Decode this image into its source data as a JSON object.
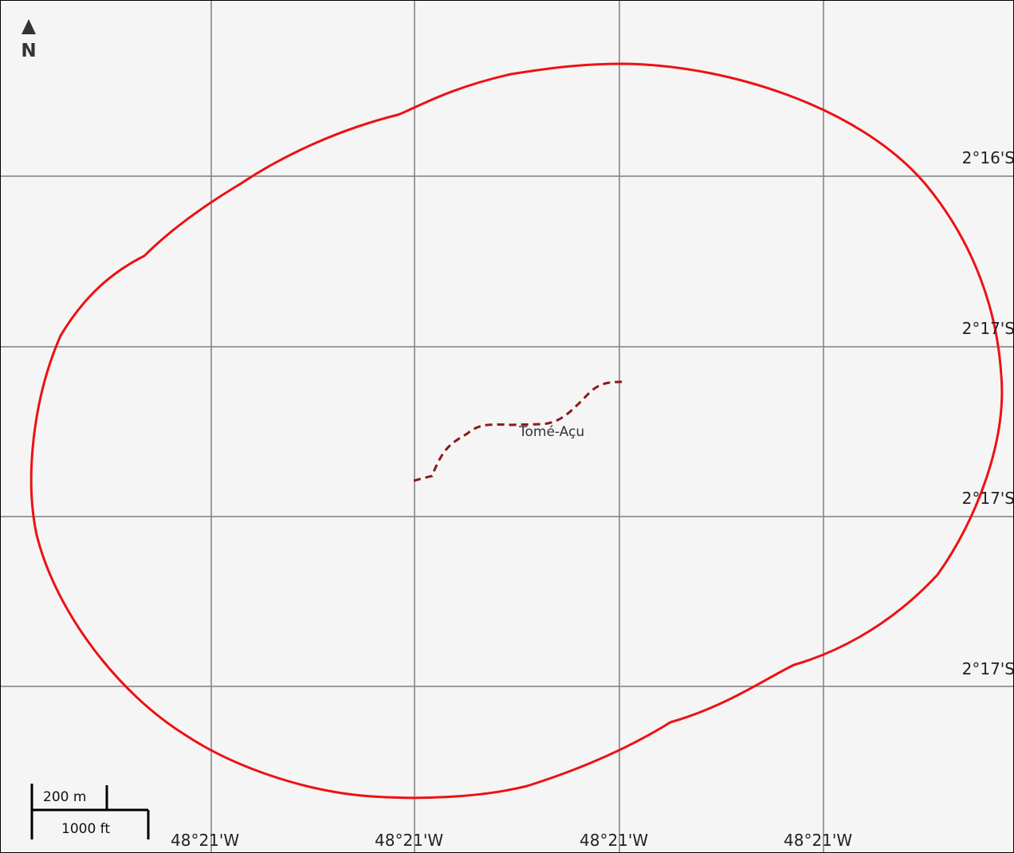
{
  "map": {
    "north_label": "N",
    "place_name": "Tomé-Açu",
    "longitude_labels": [
      "48°21'W",
      "48°21'W",
      "48°21'W",
      "48°21'W"
    ],
    "latitude_labels": [
      "2°16'S",
      "2°17'S",
      "2°17'S",
      "2°17'S"
    ],
    "scale_bar": {
      "metric_label": "200 m",
      "imperial_label": "1000 ft"
    },
    "colors": {
      "background": "#f5f5f5",
      "boundary": "#ee1111",
      "route": "#8b1a1a",
      "grid": "#8c8c8c"
    }
  }
}
